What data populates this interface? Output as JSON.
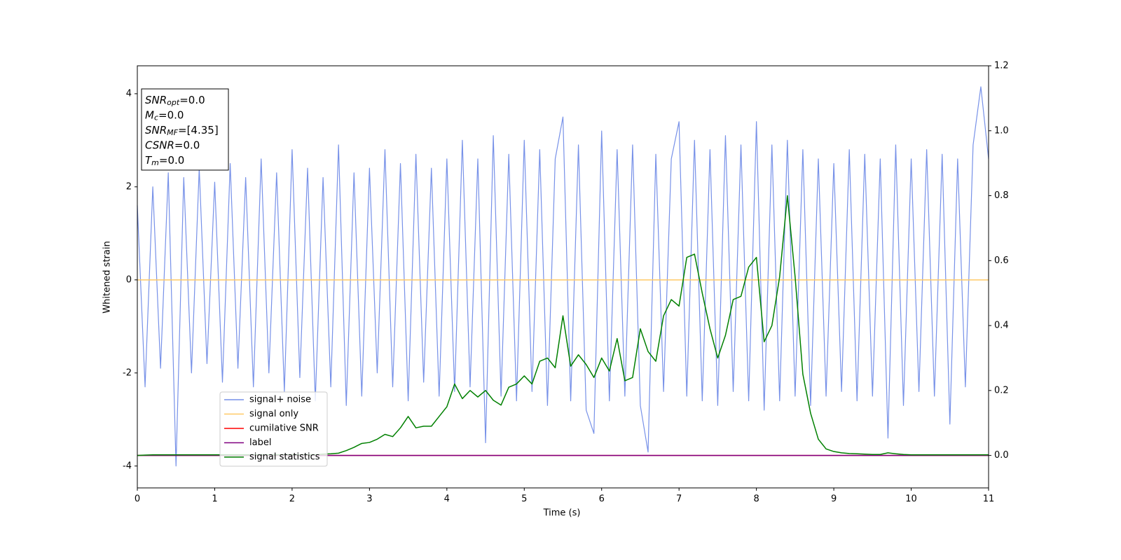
{
  "chart_data": {
    "type": "line",
    "xlabel": "Time (s)",
    "ylabel": "Whitened strain",
    "xlim": [
      0,
      11
    ],
    "xticks": [
      0,
      1,
      2,
      3,
      4,
      5,
      6,
      7,
      8,
      9,
      10,
      11
    ],
    "ylim": [
      -4.47,
      4.6
    ],
    "yticks": [
      -4,
      -2,
      0,
      2,
      4
    ],
    "y2lim": [
      -0.1,
      1.2
    ],
    "y2ticks": [
      {
        "value": 0,
        "label": "0.0"
      },
      0.2,
      0.4,
      0.6,
      0.8,
      {
        "value": 1,
        "label": "1.0"
      },
      1.2
    ],
    "annotations": [
      {
        "name": "SNR",
        "sub": "opt",
        "text": "=0.0"
      },
      {
        "name": "M",
        "sub": "c",
        "text": "=0.0"
      },
      {
        "name": "SNR",
        "sub": "MF",
        "text": "=[4.35]"
      },
      {
        "name": "CSNR",
        "sub": null,
        "text": "=0.0"
      },
      {
        "name": "T",
        "sub": "m",
        "text": "=0.0"
      }
    ],
    "x": [
      0,
      0.1,
      0.2,
      0.3,
      0.4,
      0.5,
      0.6,
      0.7,
      0.8,
      0.9,
      1,
      1.1,
      1.2,
      1.3,
      1.4,
      1.5,
      1.6,
      1.7,
      1.8,
      1.9,
      2,
      2.1,
      2.2,
      2.3,
      2.4,
      2.5,
      2.6,
      2.7,
      2.8,
      2.9,
      3,
      3.1,
      3.2,
      3.3,
      3.4,
      3.5,
      3.6,
      3.7,
      3.8,
      3.9,
      4,
      4.1,
      4.2,
      4.3,
      4.4,
      4.5,
      4.6,
      4.7,
      4.8,
      4.9,
      5,
      5.1,
      5.2,
      5.3,
      5.4,
      5.5,
      5.6,
      5.7,
      5.8,
      5.9,
      6,
      6.1,
      6.2,
      6.3,
      6.4,
      6.5,
      6.6,
      6.7,
      6.8,
      6.9,
      7,
      7.1,
      7.2,
      7.3,
      7.4,
      7.5,
      7.6,
      7.7,
      7.8,
      7.9,
      8,
      8.1,
      8.2,
      8.3,
      8.4,
      8.5,
      8.6,
      8.7,
      8.8,
      8.9,
      9,
      9.1,
      9.2,
      9.3,
      9.4,
      9.5,
      9.6,
      9.7,
      9.8,
      9.9,
      10,
      10.1,
      10.2,
      10.3,
      10.4,
      10.5,
      10.6,
      10.7,
      10.8,
      10.9,
      11
    ],
    "series": [
      {
        "name": "signal+ noise",
        "color": "#7791e8",
        "values": [
          1.6,
          -2.3,
          2.0,
          -1.9,
          2.3,
          -4.0,
          2.2,
          -2.0,
          2.4,
          -1.8,
          2.1,
          -2.2,
          2.5,
          -1.9,
          2.2,
          -2.3,
          2.6,
          -2.0,
          2.3,
          -2.4,
          2.8,
          -2.1,
          2.4,
          -2.6,
          2.2,
          -2.3,
          2.9,
          -2.7,
          2.3,
          -2.5,
          2.4,
          -2.0,
          2.8,
          -2.3,
          2.5,
          -2.6,
          2.7,
          -2.2,
          2.4,
          -2.5,
          2.6,
          -2.4,
          3.0,
          -2.3,
          2.6,
          -3.5,
          3.1,
          -2.5,
          2.7,
          -2.6,
          3.0,
          -2.4,
          2.8,
          -2.7,
          2.6,
          3.5,
          -2.6,
          2.9,
          -2.8,
          -3.3,
          3.2,
          -2.6,
          2.8,
          -2.5,
          2.9,
          -2.7,
          -3.7,
          2.7,
          -2.4,
          2.6,
          3.4,
          -2.5,
          3.0,
          -2.6,
          2.8,
          -2.7,
          3.1,
          -2.4,
          2.9,
          -2.6,
          3.4,
          -2.8,
          2.9,
          -2.6,
          3.0,
          -2.5,
          2.8,
          -2.7,
          2.6,
          -2.5,
          2.5,
          -2.4,
          2.8,
          -2.6,
          2.7,
          -2.5,
          2.6,
          -3.4,
          2.9,
          -2.7,
          2.6,
          -2.4,
          2.8,
          -2.5,
          2.7,
          -3.1,
          2.6,
          -2.3,
          2.9,
          4.15,
          2.6
        ]
      },
      {
        "name": "signal only",
        "color": "#ffc966",
        "x": [
          0,
          11
        ],
        "values": [
          0,
          0
        ]
      },
      {
        "name": "cumilative SNR",
        "color": "#ff0000",
        "axis": "y2",
        "x": [
          0,
          11
        ],
        "values": [
          0,
          0
        ]
      },
      {
        "name": "label",
        "color": "#800080",
        "axis": "y2",
        "x": [
          0,
          11
        ],
        "values": [
          0,
          0
        ]
      },
      {
        "name": "signal statistics",
        "color": "#008000",
        "axis": "y2",
        "values": [
          0,
          0.001,
          0.002,
          0.002,
          0.002,
          0.002,
          0.002,
          0.002,
          0.002,
          0.002,
          0.002,
          0.002,
          0.002,
          0.002,
          0.002,
          0.002,
          0.002,
          0.002,
          0.002,
          0.002,
          0.002,
          0.002,
          0.002,
          0.002,
          0.004,
          0.005,
          0.007,
          0.015,
          0.025,
          0.037,
          0.04,
          0.05,
          0.065,
          0.058,
          0.085,
          0.12,
          0.085,
          0.09,
          0.09,
          0.12,
          0.15,
          0.22,
          0.175,
          0.2,
          0.18,
          0.2,
          0.17,
          0.155,
          0.21,
          0.22,
          0.245,
          0.22,
          0.29,
          0.3,
          0.27,
          0.43,
          0.275,
          0.31,
          0.28,
          0.24,
          0.3,
          0.26,
          0.36,
          0.23,
          0.24,
          0.39,
          0.32,
          0.29,
          0.43,
          0.48,
          0.46,
          0.61,
          0.62,
          0.5,
          0.39,
          0.3,
          0.37,
          0.48,
          0.49,
          0.58,
          0.61,
          0.35,
          0.4,
          0.55,
          0.8,
          0.55,
          0.25,
          0.13,
          0.05,
          0.02,
          0.012,
          0.008,
          0.006,
          0.005,
          0.004,
          0.003,
          0.003,
          0.008,
          0.005,
          0.003,
          0.002,
          0.002,
          0.002,
          0.002,
          0.002,
          0.002,
          0.002,
          0.002,
          0.002,
          0.002,
          0.002
        ]
      }
    ]
  }
}
